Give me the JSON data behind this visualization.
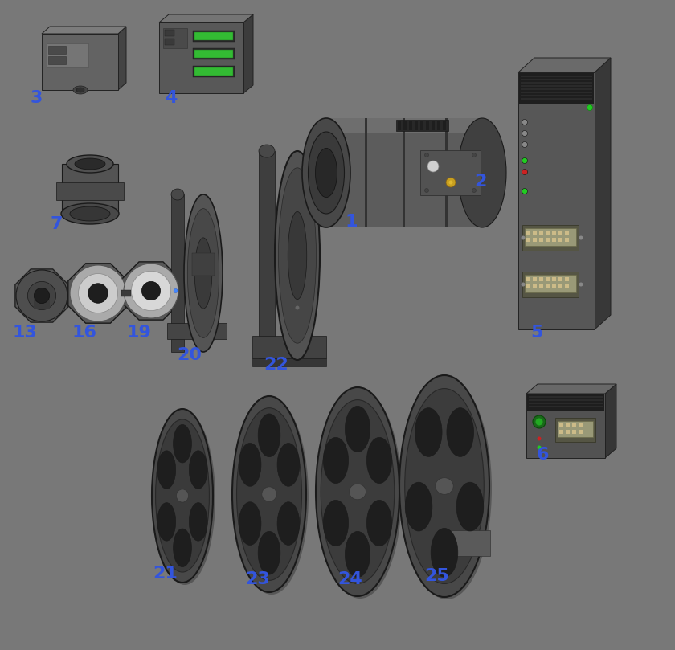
{
  "background_color": "#787878",
  "label_color": "#3355dd",
  "label_fontsize": 16,
  "fig_width": 8.4,
  "fig_height": 8.09,
  "dpi": 100
}
